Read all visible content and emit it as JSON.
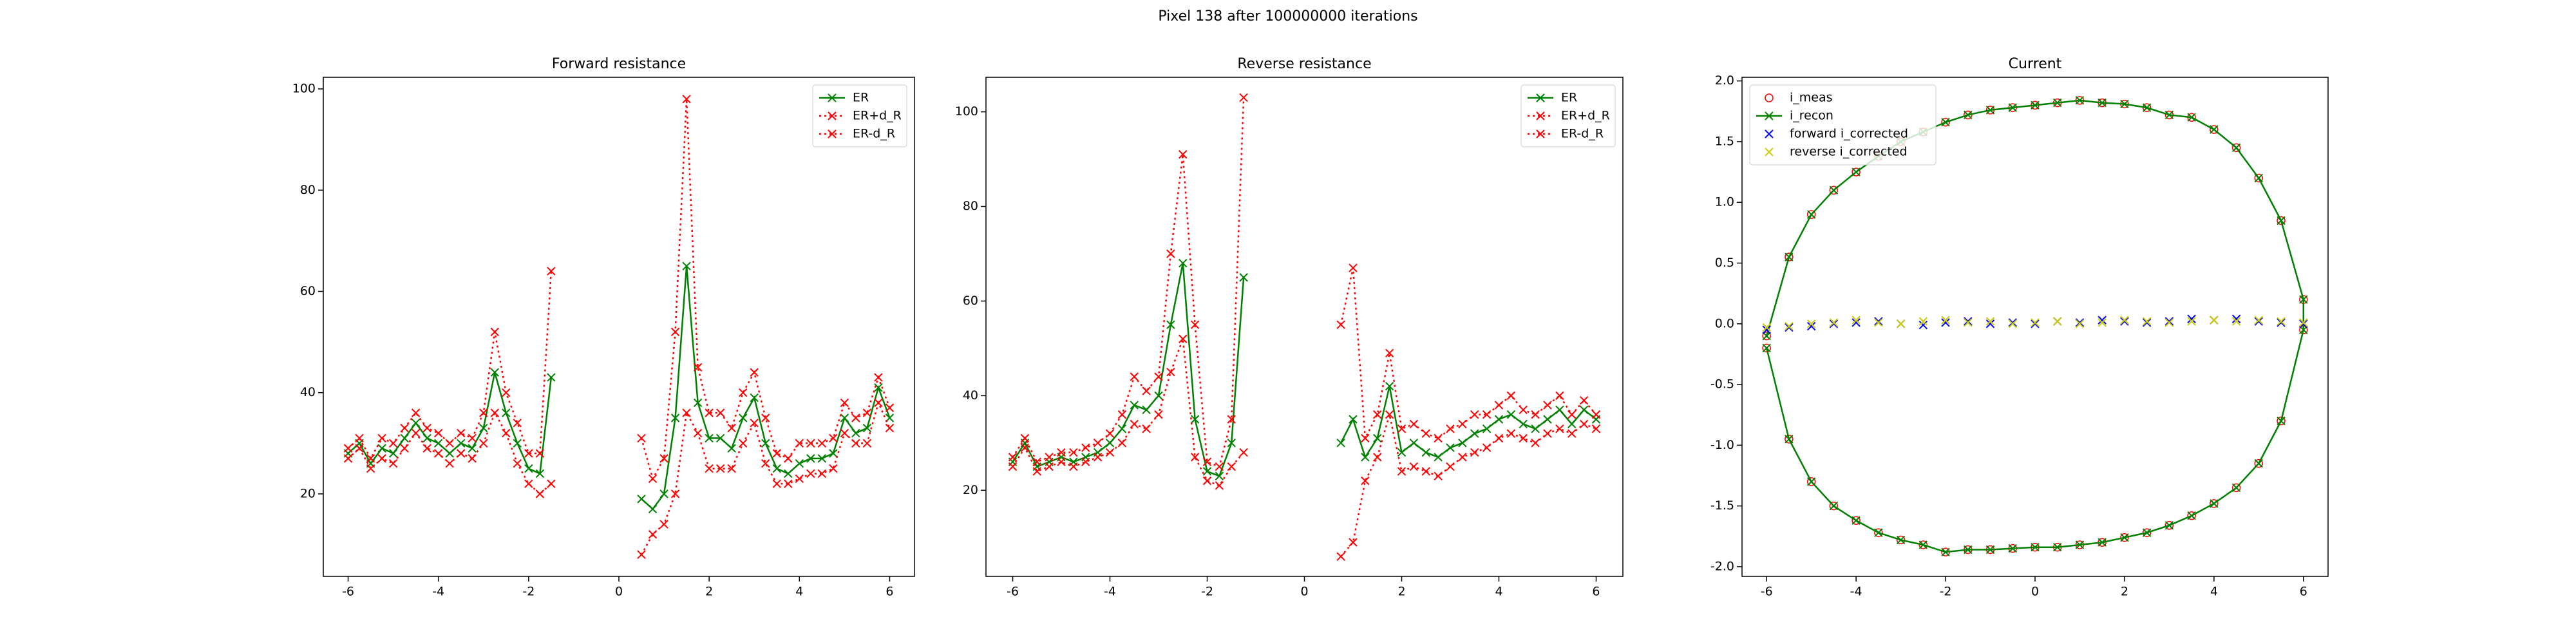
{
  "title": "Pixel 138 after 100000000 iterations",
  "chart_data": [
    {
      "type": "line",
      "title": "Forward resistance",
      "legend": "upper right",
      "x": [
        -6,
        -5.75,
        -5.5,
        -5.25,
        -5,
        -4.75,
        -4.5,
        -4.25,
        -4,
        -3.75,
        -3.5,
        -3.25,
        -3,
        -2.75,
        -2.5,
        -2.25,
        -2,
        -1.75,
        -1.5,
        0,
        0.5,
        0.75,
        1,
        1.25,
        1.5,
        1.75,
        2,
        2.25,
        2.5,
        2.75,
        3,
        3.25,
        3.5,
        3.75,
        4,
        4.25,
        4.5,
        4.75,
        5,
        5.25,
        5.5,
        5.75,
        6
      ],
      "series": [
        {
          "name": "ER",
          "color": "#008000",
          "marker": "x",
          "linestyle": "solid",
          "values": [
            28,
            30,
            26,
            29,
            28,
            31,
            34,
            31,
            30,
            28,
            30,
            29,
            33,
            44,
            36,
            30,
            25,
            24,
            43,
            null,
            19,
            17,
            20,
            35,
            65,
            38,
            31,
            31,
            29,
            35,
            39,
            30,
            25,
            24,
            26,
            27,
            27,
            28,
            35,
            32,
            33,
            41,
            35
          ]
        },
        {
          "name": "ER+d_R",
          "color": "#ff0000",
          "marker": "x",
          "linestyle": "dotted",
          "values": [
            29,
            31,
            27,
            31,
            30,
            33,
            36,
            33,
            32,
            30,
            32,
            31,
            36,
            52,
            40,
            34,
            28,
            28,
            64,
            null,
            31,
            23,
            27,
            52,
            98,
            45,
            36,
            36,
            33,
            40,
            44,
            35,
            28,
            27,
            30,
            30,
            30,
            31,
            38,
            35,
            36,
            43,
            37
          ]
        },
        {
          "name": "ER-d_R",
          "color": "#ff0000",
          "marker": "x",
          "linestyle": "dotted",
          "values": [
            27,
            29,
            25,
            27,
            26,
            29,
            32,
            29,
            28,
            26,
            28,
            27,
            30,
            36,
            32,
            26,
            22,
            20,
            22,
            null,
            8,
            12,
            14,
            20,
            36,
            32,
            25,
            25,
            25,
            30,
            34,
            26,
            22,
            22,
            23,
            24,
            24,
            25,
            32,
            30,
            30,
            38,
            33
          ]
        }
      ],
      "xlim": [
        -6.55,
        6.55
      ],
      "ylim": [
        3.7,
        102.3
      ],
      "xticks": [
        -6,
        -4,
        -2,
        0,
        2,
        4,
        6
      ],
      "yticks": [
        20,
        40,
        60,
        80,
        100
      ]
    },
    {
      "type": "line",
      "title": "Reverse resistance",
      "legend": "upper right",
      "x": [
        -6,
        -5.75,
        -5.5,
        -5.25,
        -5,
        -4.75,
        -4.5,
        -4.25,
        -4,
        -3.75,
        -3.5,
        -3.25,
        -3,
        -2.75,
        -2.5,
        -2.25,
        -2,
        -1.75,
        -1.5,
        -1.25,
        0,
        0.75,
        1,
        1.25,
        1.5,
        1.75,
        2,
        2.25,
        2.5,
        2.75,
        3,
        3.25,
        3.5,
        3.75,
        4,
        4.25,
        4.5,
        4.75,
        5,
        5.25,
        5.5,
        5.75,
        6
      ],
      "series": [
        {
          "name": "ER",
          "color": "#008000",
          "marker": "x",
          "linestyle": "solid",
          "values": [
            26,
            30,
            25,
            26,
            27,
            26,
            27,
            28,
            30,
            33,
            38,
            37,
            40,
            55,
            68,
            35,
            24,
            23,
            30,
            65,
            null,
            30,
            35,
            27,
            31,
            42,
            28,
            30,
            28,
            27,
            29,
            30,
            32,
            33,
            35,
            36,
            34,
            33,
            35,
            37,
            34,
            37,
            35
          ]
        },
        {
          "name": "ER+d_R",
          "color": "#ff0000",
          "marker": "x",
          "linestyle": "dotted",
          "values": [
            27,
            31,
            26,
            27,
            28,
            28,
            29,
            30,
            32,
            36,
            44,
            41,
            44,
            70,
            91,
            55,
            26,
            25,
            35,
            103,
            null,
            55,
            67,
            31,
            36,
            49,
            33,
            34,
            32,
            31,
            33,
            34,
            36,
            36,
            38,
            40,
            37,
            36,
            38,
            40,
            36,
            39,
            36
          ]
        },
        {
          "name": "ER-d_R",
          "color": "#ff0000",
          "marker": "x",
          "linestyle": "dotted",
          "values": [
            25,
            29,
            24,
            25,
            26,
            25,
            26,
            27,
            28,
            30,
            34,
            33,
            36,
            45,
            52,
            27,
            22,
            21,
            25,
            28,
            null,
            6,
            9,
            22,
            27,
            36,
            24,
            25,
            24,
            23,
            25,
            27,
            28,
            29,
            31,
            32,
            31,
            30,
            32,
            33,
            32,
            34,
            33
          ]
        }
      ],
      "xlim": [
        -6.55,
        6.55
      ],
      "ylim": [
        1.8,
        107.3
      ],
      "xticks": [
        -6,
        -4,
        -2,
        0,
        2,
        4,
        6
      ],
      "yticks": [
        20,
        40,
        60,
        80,
        100
      ]
    },
    {
      "type": "line",
      "title": "Current",
      "legend": "upper left",
      "x": [
        -6,
        -5.5,
        -5,
        -4.5,
        -4,
        -3.5,
        -3,
        -2.5,
        -2,
        -1.5,
        -1,
        -0.5,
        0,
        0.5,
        1,
        1.5,
        2,
        2.5,
        3,
        3.5,
        4,
        4.5,
        5,
        5.5,
        6,
        6,
        5.5,
        5,
        4.5,
        4,
        3.5,
        3,
        2.5,
        2,
        1.5,
        1,
        0.5,
        0,
        -0.5,
        -1,
        -1.5,
        -2,
        -2.5,
        -3,
        -3.5,
        -4,
        -4.5,
        -5,
        -5.5,
        -6
      ],
      "series": [
        {
          "name": "i_meas",
          "color": "#ff0000",
          "marker": "o",
          "linestyle": "none",
          "values": [
            -0.1,
            0.55,
            0.9,
            1.1,
            1.25,
            1.38,
            1.5,
            1.58,
            1.66,
            1.72,
            1.76,
            1.78,
            1.8,
            1.82,
            1.84,
            1.82,
            1.81,
            1.78,
            1.72,
            1.7,
            1.6,
            1.45,
            1.2,
            0.85,
            0.2,
            -0.05,
            -0.8,
            -1.15,
            -1.35,
            -1.48,
            -1.58,
            -1.66,
            -1.72,
            -1.76,
            -1.8,
            -1.82,
            -1.84,
            -1.84,
            -1.85,
            -1.86,
            -1.86,
            -1.88,
            -1.82,
            -1.78,
            -1.72,
            -1.62,
            -1.5,
            -1.3,
            -0.95,
            -0.2
          ]
        },
        {
          "name": "i_recon",
          "color": "#008000",
          "marker": "x",
          "linestyle": "solid",
          "values": [
            -0.1,
            0.55,
            0.9,
            1.1,
            1.25,
            1.38,
            1.5,
            1.58,
            1.66,
            1.72,
            1.76,
            1.78,
            1.8,
            1.82,
            1.84,
            1.82,
            1.81,
            1.78,
            1.72,
            1.7,
            1.6,
            1.45,
            1.2,
            0.85,
            0.2,
            -0.05,
            -0.8,
            -1.15,
            -1.35,
            -1.48,
            -1.58,
            -1.66,
            -1.72,
            -1.76,
            -1.8,
            -1.82,
            -1.84,
            -1.84,
            -1.85,
            -1.86,
            -1.86,
            -1.88,
            -1.82,
            -1.78,
            -1.72,
            -1.62,
            -1.5,
            -1.3,
            -0.95,
            -0.2
          ]
        },
        {
          "name": "forward i_corrected",
          "color": "#0000ff",
          "marker": "x",
          "linestyle": "none",
          "x": [
            -6,
            -5.5,
            -5,
            -4.5,
            -4,
            -3.5,
            -3,
            -2.5,
            -2,
            -1.5,
            -1,
            -0.5,
            0,
            0.5,
            1,
            1.5,
            2,
            2.5,
            3,
            3.5,
            4,
            4.5,
            5,
            5.5,
            6
          ],
          "values": [
            -0.05,
            -0.03,
            -0.02,
            0,
            0.01,
            0.02,
            0,
            -0.01,
            0.01,
            0.02,
            0,
            0.01,
            0,
            0.02,
            0.01,
            0.03,
            0.02,
            0.01,
            0.02,
            0.04,
            0.03,
            0.04,
            0.02,
            0.01,
            0
          ]
        },
        {
          "name": "reverse i_corrected",
          "color": "#cccc00",
          "marker": "x",
          "linestyle": "none",
          "x": [
            -6,
            -5.5,
            -5,
            -4.5,
            -4,
            -3.5,
            -3,
            -2.5,
            -2,
            -1.5,
            -1,
            -0.5,
            0,
            0.5,
            1,
            1.5,
            2,
            2.5,
            3,
            3.5,
            4,
            4.5,
            5,
            5.5,
            6
          ],
          "values": [
            -0.03,
            -0.02,
            0,
            0.01,
            0.03,
            0.01,
            0,
            0.02,
            0.03,
            0.01,
            0.02,
            0,
            0.01,
            0.02,
            0,
            0.01,
            0.03,
            0.02,
            0.01,
            0.02,
            0.03,
            0.02,
            0.03,
            0.02,
            0.01
          ]
        }
      ],
      "xlim": [
        -6.55,
        6.55
      ],
      "ylim": [
        -2.08,
        2.03
      ],
      "xticks": [
        -6,
        -4,
        -2,
        0,
        2,
        4,
        6
      ],
      "yticks": [
        {
          "value": -2,
          "label": "-2.0"
        },
        {
          "value": -1.5,
          "label": "-1.5"
        },
        {
          "value": -1,
          "label": "-1.0"
        },
        {
          "value": -0.5,
          "label": "-0.5"
        },
        {
          "value": 0,
          "label": "0.0"
        },
        {
          "value": 0.5,
          "label": "0.5"
        },
        {
          "value": 1,
          "label": "1.0"
        },
        {
          "value": 1.5,
          "label": "1.5"
        },
        {
          "value": 2,
          "label": "2.0"
        }
      ]
    }
  ]
}
